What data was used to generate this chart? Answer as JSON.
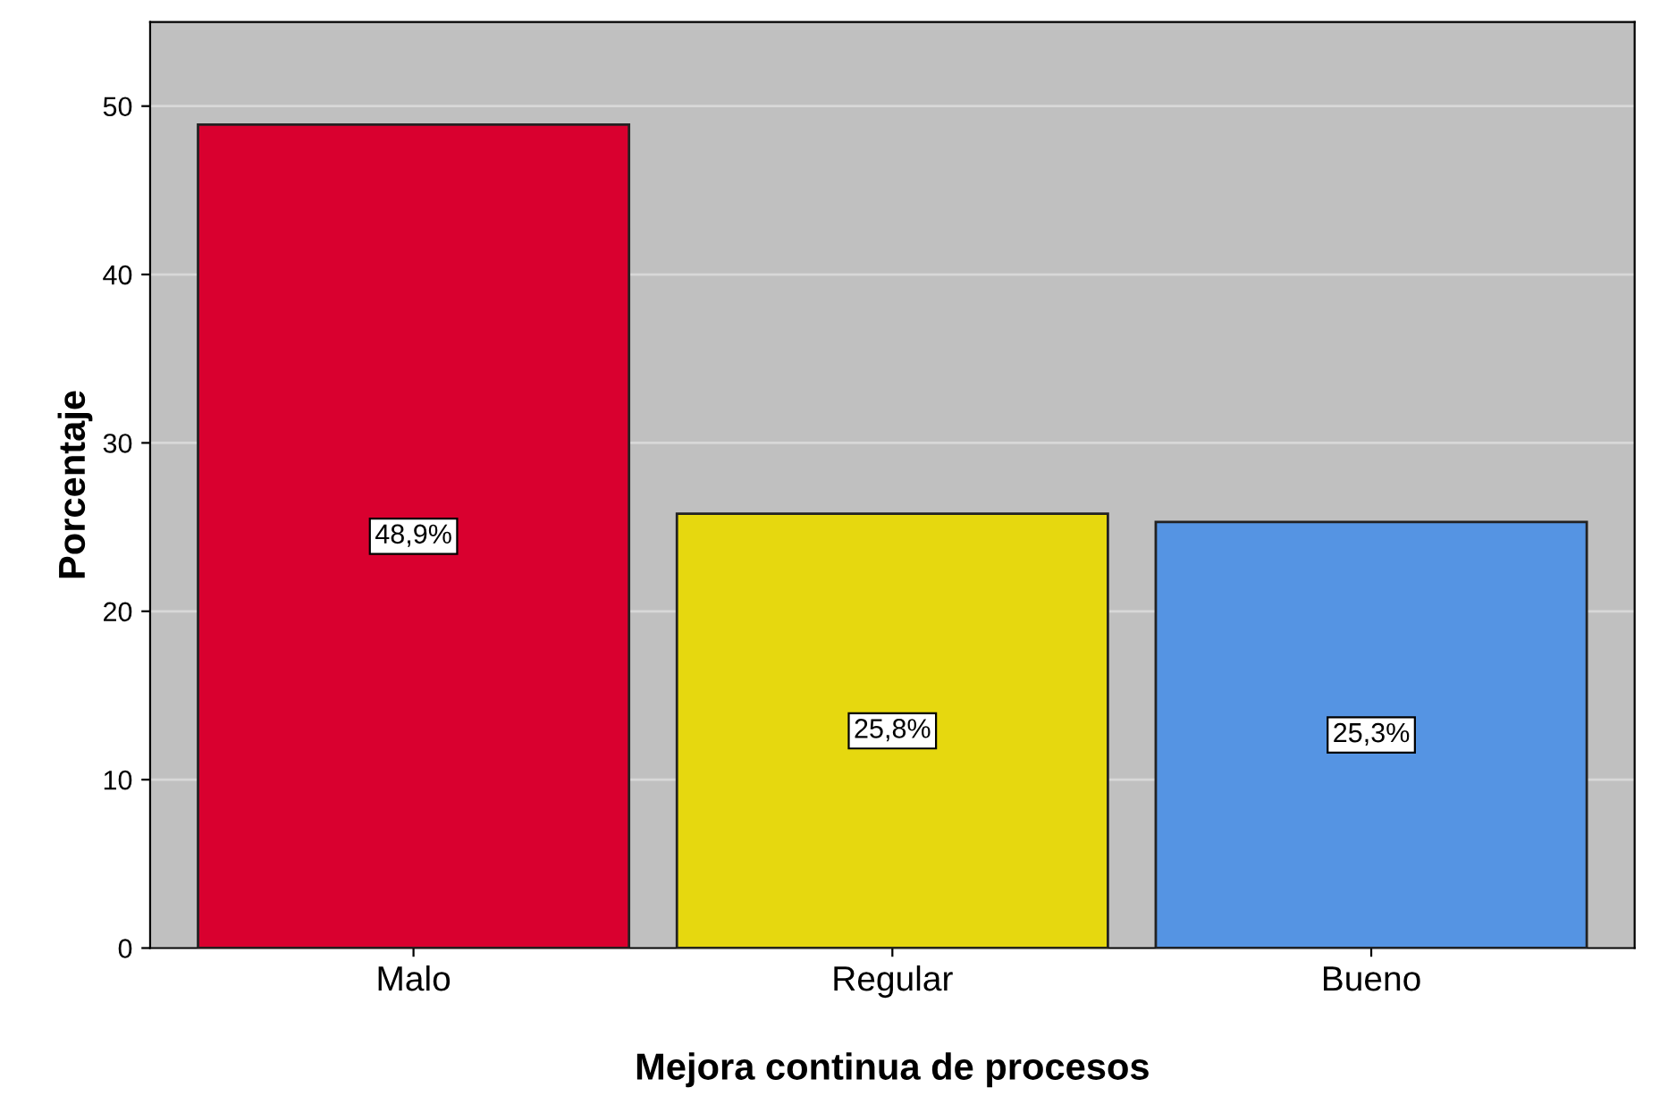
{
  "chart_data": {
    "type": "bar",
    "xlabel": "Mejora continua de procesos",
    "ylabel": "Porcentaje",
    "categories": [
      "Malo",
      "Regular",
      "Bueno"
    ],
    "values": [
      48.9,
      25.8,
      25.3
    ],
    "colors": [
      "#d9002f",
      "#e6d80f",
      "#5594e3"
    ],
    "value_labels": [
      "48,9%",
      "25,8%",
      "25,3%"
    ],
    "ylim": [
      0,
      55
    ],
    "yticks": [
      0,
      10,
      20,
      30,
      40,
      50
    ],
    "grid": "y",
    "legend": false
  }
}
